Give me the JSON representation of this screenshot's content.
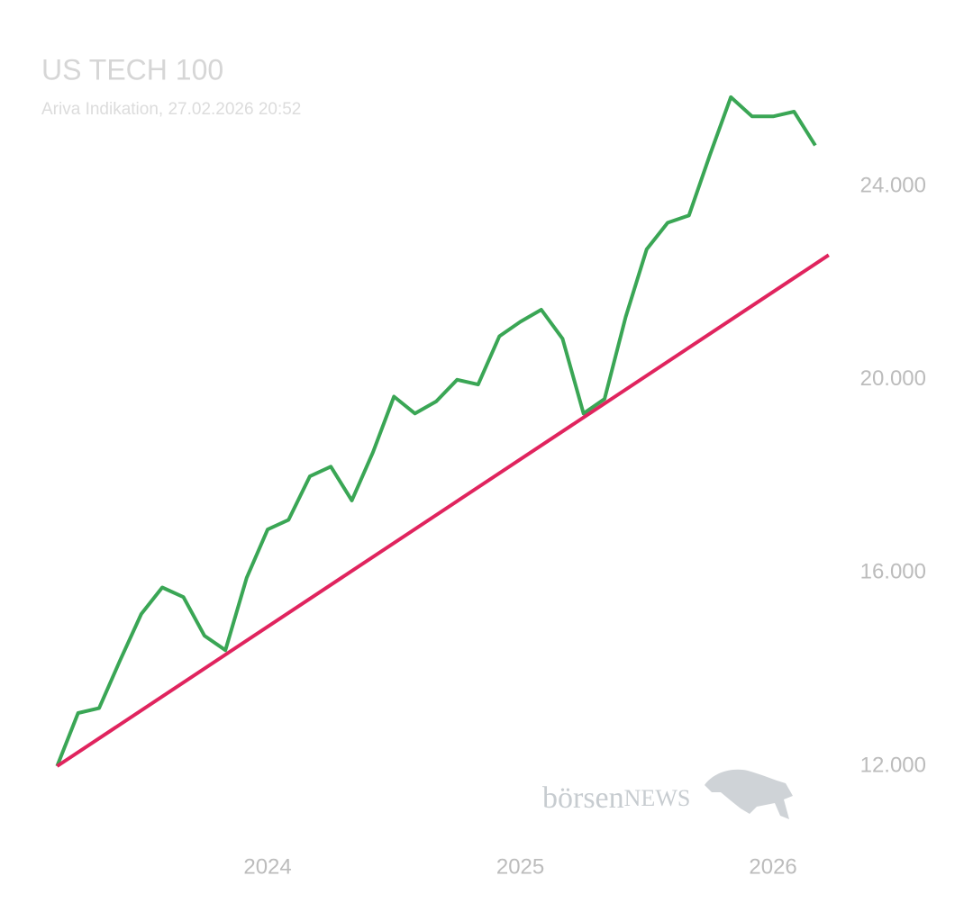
{
  "chart_data": {
    "type": "line",
    "title": "US TECH 100",
    "subtitle": "Ariva Indikation, 27.02.2026 20:52",
    "watermark": [
      "börsen",
      "NEWS"
    ],
    "xlim": [
      2023.1,
      2026.25
    ],
    "ylim": [
      10500,
      26500
    ],
    "xticks": [
      2024,
      2025,
      2026
    ],
    "yticks": [
      {
        "value": 12000,
        "label": "12.000"
      },
      {
        "value": 16000,
        "label": "16.000"
      },
      {
        "value": 20000,
        "label": "20.000"
      },
      {
        "value": 24000,
        "label": "24.000"
      }
    ],
    "grid": false,
    "series": [
      {
        "color": "#3aa655",
        "x": [
          2023.167,
          2023.25,
          2023.333,
          2023.417,
          2023.5,
          2023.583,
          2023.667,
          2023.75,
          2023.833,
          2023.917,
          2024.0,
          2024.083,
          2024.167,
          2024.25,
          2024.333,
          2024.417,
          2024.5,
          2024.583,
          2024.667,
          2024.75,
          2024.833,
          2024.917,
          2025.0,
          2025.083,
          2025.167,
          2025.25,
          2025.333,
          2025.417,
          2025.5,
          2025.583,
          2025.667,
          2025.75,
          2025.833,
          2025.917,
          2026.0,
          2026.083,
          2026.167
        ],
        "values": [
          12000,
          13100,
          13200,
          14200,
          15150,
          15700,
          15500,
          14700,
          14400,
          15900,
          16900,
          17100,
          18000,
          18200,
          17500,
          18500,
          19650,
          19300,
          19550,
          20000,
          19900,
          20900,
          21200,
          21450,
          20850,
          19300,
          19600,
          21300,
          22700,
          23250,
          23400,
          24650,
          25850,
          25450,
          25450,
          25550,
          24850
        ]
      },
      {
        "color": "#e0245e",
        "x": [
          2023.167,
          2026.22
        ],
        "values": [
          12000,
          22580
        ]
      }
    ]
  }
}
